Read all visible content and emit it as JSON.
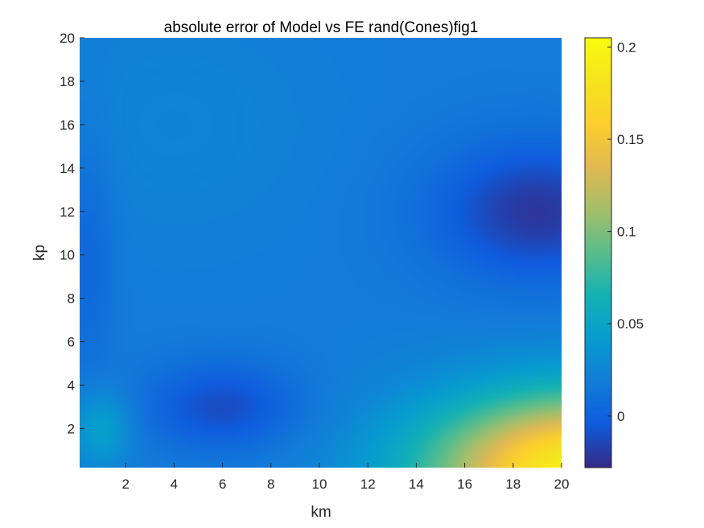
{
  "chart_data": {
    "type": "heatmap",
    "title": "absolute error of Model vs FE rand(Cones)fig1",
    "xlabel": "km",
    "ylabel": "kp",
    "xlim": [
      0.1,
      20
    ],
    "ylim": [
      0.2,
      20
    ],
    "xticks": [
      2,
      4,
      6,
      8,
      10,
      12,
      14,
      16,
      18,
      20
    ],
    "yticks": [
      2,
      4,
      6,
      8,
      10,
      12,
      14,
      16,
      18,
      20
    ],
    "colorbar": {
      "limits": [
        -0.028,
        0.205
      ],
      "ticks": [
        0,
        0.05,
        0.1,
        0.15,
        0.2
      ],
      "tick_labels": [
        "0",
        "0.05",
        "0.1",
        "0.15",
        "0.2"
      ],
      "colormap": "parula"
    },
    "features": [
      {
        "description": "minimum",
        "km": 19,
        "kp": 12,
        "value": -0.025
      },
      {
        "description": "local minimum",
        "km": 5,
        "kp": 2.5,
        "value": -0.018
      },
      {
        "description": "maximum",
        "km": 20,
        "kp": 0.2,
        "value": 0.16
      },
      {
        "description": "local maximum",
        "km": 1,
        "kp": 2,
        "value": 0.045
      },
      {
        "description": "local maximum",
        "km": 4,
        "kp": 17,
        "value": 0.035
      }
    ]
  }
}
